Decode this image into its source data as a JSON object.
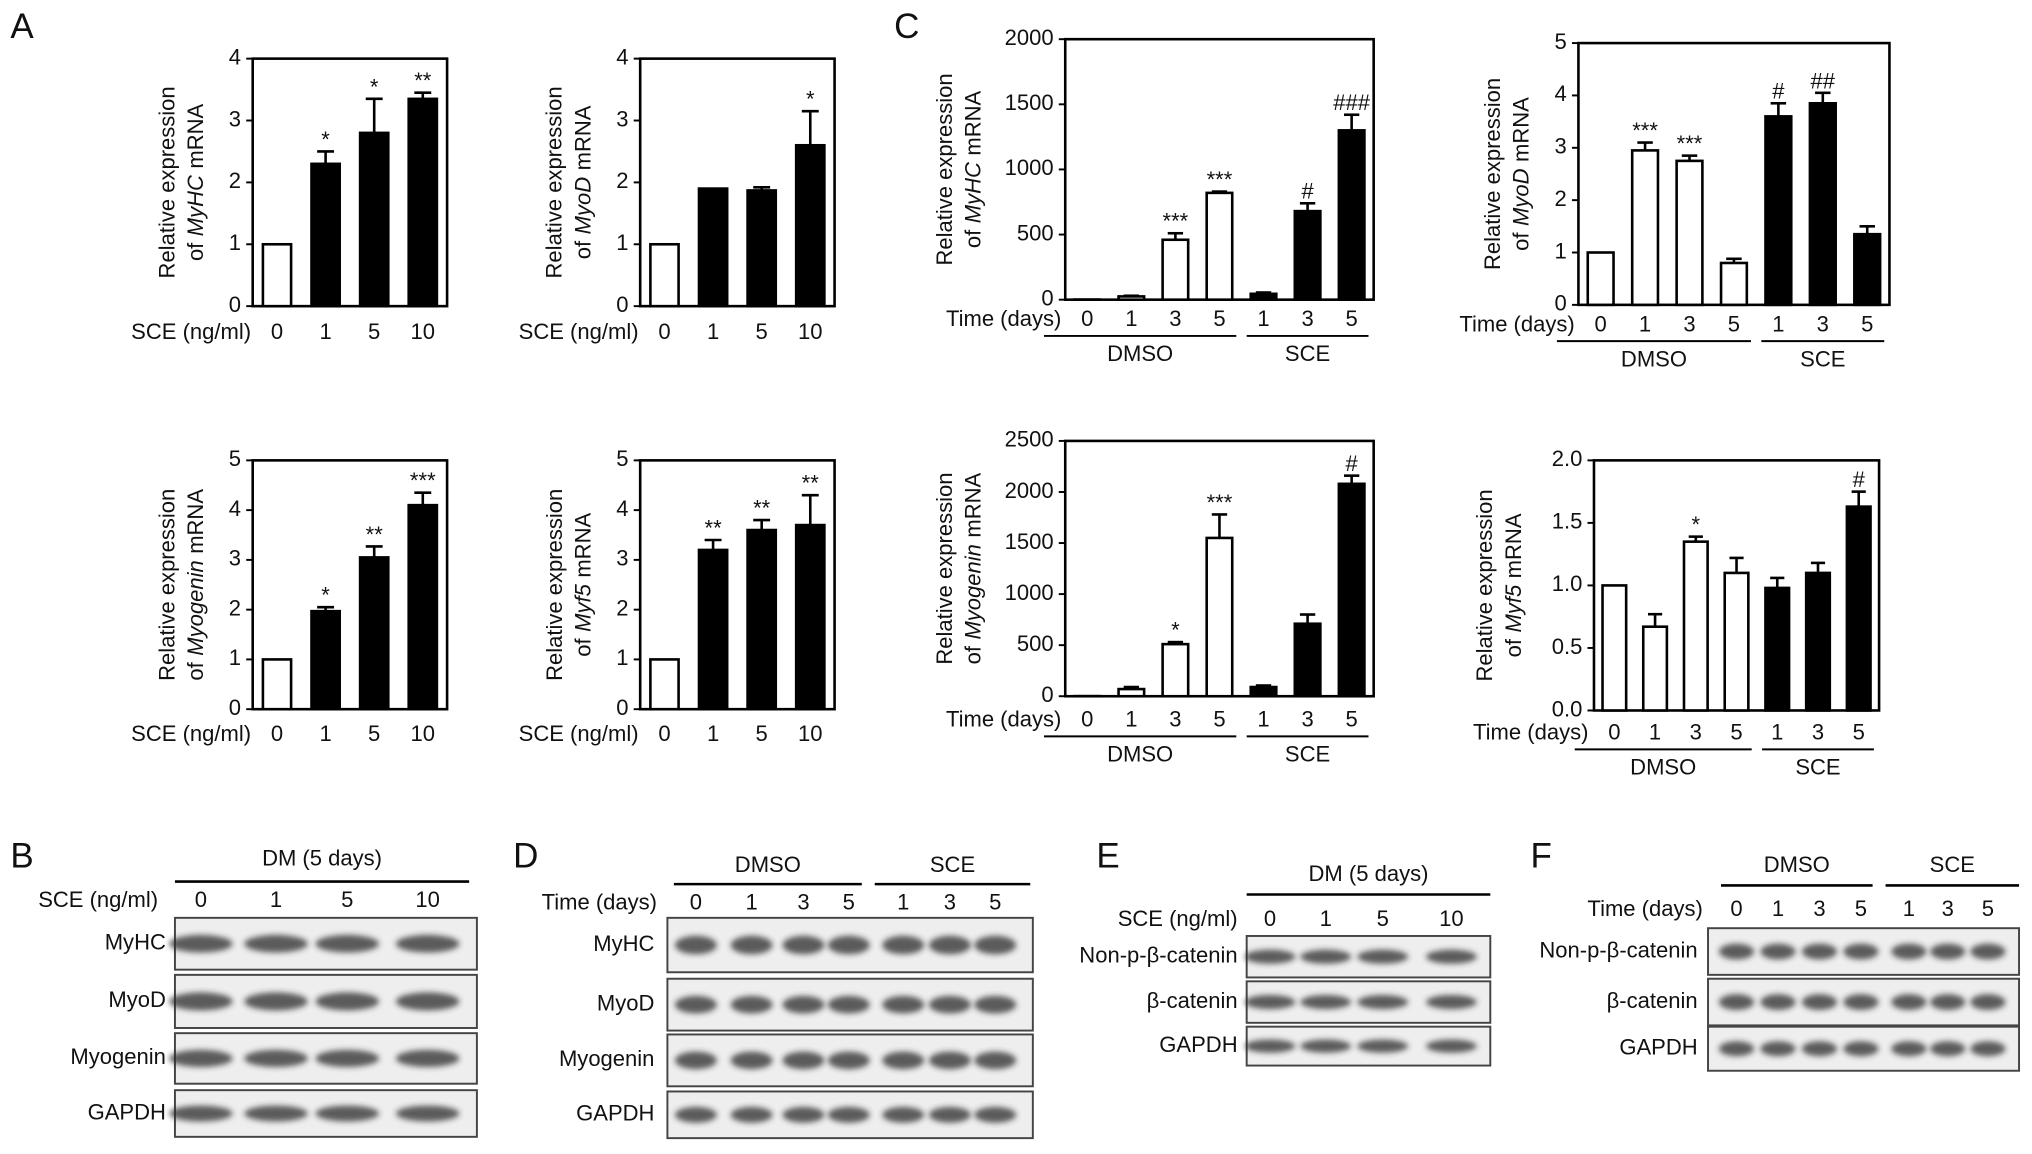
{
  "panel_labels": [
    "A",
    "B",
    "C",
    "D",
    "E",
    "F"
  ],
  "chart_data": [
    {
      "type": "bar",
      "x_label": "SCE (ng/ml)",
      "y_label": {
        "line1": "Relative expression",
        "prefix": "of",
        "gene": "MyHC",
        "suffix": "mRNA"
      },
      "categories": [
        "0",
        "1",
        "5",
        "10"
      ],
      "values": [
        1,
        2.3,
        2.8,
        3.35
      ],
      "errors": [
        0,
        0.2,
        0.55,
        0.1
      ],
      "annotations": [
        null,
        "*",
        "*",
        "**"
      ],
      "bar_colors": [
        "#ffffff",
        "#000000",
        "#000000",
        "#000000"
      ],
      "ylim": [
        0,
        4
      ],
      "yticks": [
        0,
        1,
        2,
        3,
        4
      ]
    },
    {
      "type": "bar",
      "x_label": "SCE (ng/ml)",
      "y_label": {
        "line1": "Relative expression",
        "prefix": "of",
        "gene": "MyoD",
        "suffix": "mRNA"
      },
      "categories": [
        "0",
        "1",
        "5",
        "10"
      ],
      "values": [
        1,
        1.9,
        1.87,
        2.6
      ],
      "errors": [
        0,
        0,
        0.05,
        0.55
      ],
      "annotations": [
        null,
        null,
        null,
        "*"
      ],
      "bar_colors": [
        "#ffffff",
        "#000000",
        "#000000",
        "#000000"
      ],
      "ylim": [
        0,
        4
      ],
      "yticks": [
        0,
        1,
        2,
        3,
        4
      ]
    },
    {
      "type": "bar",
      "x_label": "SCE (ng/ml)",
      "y_label": {
        "line1": "Relative expression",
        "prefix": "of",
        "gene": "Myogenin",
        "suffix": "mRNA"
      },
      "categories": [
        "0",
        "1",
        "5",
        "10"
      ],
      "values": [
        1,
        1.97,
        3.05,
        4.1
      ],
      "errors": [
        0,
        0.08,
        0.22,
        0.25
      ],
      "annotations": [
        null,
        "*",
        "**",
        "***"
      ],
      "bar_colors": [
        "#ffffff",
        "#000000",
        "#000000",
        "#000000"
      ],
      "ylim": [
        0,
        5
      ],
      "yticks": [
        0,
        1,
        2,
        3,
        4,
        5
      ]
    },
    {
      "type": "bar",
      "x_label": "SCE (ng/ml)",
      "y_label": {
        "line1": "Relative expression",
        "prefix": "of",
        "gene": "Myf5",
        "suffix": "mRNA"
      },
      "categories": [
        "0",
        "1",
        "5",
        "10"
      ],
      "values": [
        1,
        3.2,
        3.6,
        3.7
      ],
      "errors": [
        0,
        0.2,
        0.2,
        0.6
      ],
      "annotations": [
        null,
        "**",
        "**",
        "**"
      ],
      "bar_colors": [
        "#ffffff",
        "#000000",
        "#000000",
        "#000000"
      ],
      "ylim": [
        0,
        5
      ],
      "yticks": [
        0,
        1,
        2,
        3,
        4,
        5
      ]
    },
    {
      "type": "bar",
      "x_label": "Time (days)",
      "y_label": {
        "line1": "Relative expression",
        "prefix": "of",
        "gene": "MyHC",
        "suffix": "mRNA"
      },
      "categories": [
        "0",
        "1",
        "3",
        "5",
        "1",
        "3",
        "5"
      ],
      "series": [
        {
          "name": "DMSO",
          "color": "#ffffff",
          "values": [
            1,
            25,
            460,
            820,
            null,
            null,
            null
          ],
          "errors": [
            0,
            5,
            50,
            10,
            null,
            null,
            null
          ],
          "annotations": [
            null,
            null,
            "***",
            "***",
            null,
            null,
            null
          ]
        },
        {
          "name": "SCE",
          "color": "#000000",
          "values": [
            null,
            null,
            null,
            null,
            45,
            680,
            1300
          ],
          "errors": [
            null,
            null,
            null,
            null,
            10,
            60,
            120
          ],
          "annotations": [
            null,
            null,
            null,
            null,
            null,
            "#",
            "###"
          ]
        }
      ],
      "ylim": [
        0,
        2000
      ],
      "yticks": [
        0,
        500,
        1000,
        1500,
        2000
      ]
    },
    {
      "type": "bar",
      "x_label": "Time (days)",
      "y_label": {
        "line1": "Relative expression",
        "prefix": "of",
        "gene": "MyoD",
        "suffix": "mRNA"
      },
      "categories": [
        "0",
        "1",
        "3",
        "5",
        "1",
        "3",
        "5"
      ],
      "series": [
        {
          "name": "DMSO",
          "color": "#ffffff",
          "values": [
            1,
            2.95,
            2.75,
            0.8,
            null,
            null,
            null
          ],
          "errors": [
            0,
            0.15,
            0.1,
            0.08,
            null,
            null,
            null
          ],
          "annotations": [
            null,
            "***",
            "***",
            null,
            null,
            null,
            null
          ]
        },
        {
          "name": "SCE",
          "color": "#000000",
          "values": [
            null,
            null,
            null,
            null,
            3.6,
            3.85,
            1.35
          ],
          "errors": [
            null,
            null,
            null,
            null,
            0.25,
            0.2,
            0.15
          ],
          "annotations": [
            null,
            null,
            null,
            null,
            "#",
            "##",
            null
          ]
        }
      ],
      "ylim": [
        0,
        5
      ],
      "yticks": [
        0,
        1,
        2,
        3,
        4,
        5
      ]
    },
    {
      "type": "bar",
      "x_label": "Time (days)",
      "y_label": {
        "line1": "Relative expression",
        "prefix": "of",
        "gene": "Myogenin",
        "suffix": "mRNA"
      },
      "categories": [
        "0",
        "1",
        "3",
        "5",
        "1",
        "3",
        "5"
      ],
      "series": [
        {
          "name": "DMSO",
          "color": "#ffffff",
          "values": [
            1,
            70,
            510,
            1550,
            null,
            null,
            null
          ],
          "errors": [
            0,
            20,
            20,
            230,
            null,
            null,
            null
          ],
          "annotations": [
            null,
            null,
            "*",
            "***",
            null,
            null,
            null
          ]
        },
        {
          "name": "SCE",
          "color": "#000000",
          "values": [
            null,
            null,
            null,
            null,
            90,
            710,
            2080
          ],
          "errors": [
            null,
            null,
            null,
            null,
            15,
            90,
            80
          ],
          "annotations": [
            null,
            null,
            null,
            null,
            null,
            null,
            "#"
          ]
        }
      ],
      "ylim": [
        0,
        2500
      ],
      "yticks": [
        0,
        500,
        1000,
        1500,
        2000,
        2500
      ]
    },
    {
      "type": "bar",
      "x_label": "Time (days)",
      "y_label": {
        "line1": "Relative expression",
        "prefix": "of",
        "gene": "Myf5",
        "suffix": "mRNA"
      },
      "categories": [
        "0",
        "1",
        "3",
        "5",
        "1",
        "3",
        "5"
      ],
      "series": [
        {
          "name": "DMSO",
          "color": "#ffffff",
          "values": [
            1,
            0.67,
            1.35,
            1.1,
            null,
            null,
            null
          ],
          "errors": [
            0,
            0.1,
            0.04,
            0.12,
            null,
            null,
            null
          ],
          "annotations": [
            null,
            null,
            "*",
            null,
            null,
            null,
            null
          ]
        },
        {
          "name": "SCE",
          "color": "#000000",
          "values": [
            null,
            null,
            null,
            null,
            0.98,
            1.1,
            1.63
          ],
          "errors": [
            null,
            null,
            null,
            null,
            0.08,
            0.08,
            0.12
          ],
          "annotations": [
            null,
            null,
            null,
            null,
            null,
            null,
            "#"
          ]
        }
      ],
      "ylim": [
        0,
        2
      ],
      "yticks": [
        {
          "value": 0,
          "label": "0.0"
        },
        0.5,
        {
          "value": 1,
          "label": "1.0"
        },
        1.5,
        {
          "value": 2,
          "label": "2.0"
        }
      ]
    }
  ],
  "blots": [
    {
      "groups": [
        "DM (5 days)"
      ],
      "lane_label": "SCE (ng/ml)",
      "lanes": [
        [
          "0",
          "1",
          "5",
          "10"
        ]
      ],
      "rows": [
        "MyHC",
        "MyoD",
        "Myogenin",
        "GAPDH"
      ]
    },
    {
      "groups": [
        "DMSO",
        "SCE"
      ],
      "lane_label": "Time (days)",
      "lanes": [
        [
          "0",
          "1",
          "3",
          "5"
        ],
        [
          "1",
          "3",
          "5"
        ]
      ],
      "rows": [
        "MyHC",
        "MyoD",
        "Myogenin",
        "GAPDH"
      ]
    },
    {
      "groups": [
        "DM (5 days)"
      ],
      "lane_label": "SCE (ng/ml)",
      "lanes": [
        [
          "0",
          "1",
          "5",
          "10"
        ]
      ],
      "rows": [
        "Non-p-β-catenin",
        "β-catenin",
        "GAPDH"
      ]
    },
    {
      "groups": [
        "DMSO",
        "SCE"
      ],
      "lane_label": "Time (days)",
      "lanes": [
        [
          "0",
          "1",
          "3",
          "5"
        ],
        [
          "1",
          "3",
          "5"
        ]
      ],
      "rows": [
        "Non-p-β-catenin",
        "β-catenin",
        "GAPDH"
      ]
    }
  ]
}
